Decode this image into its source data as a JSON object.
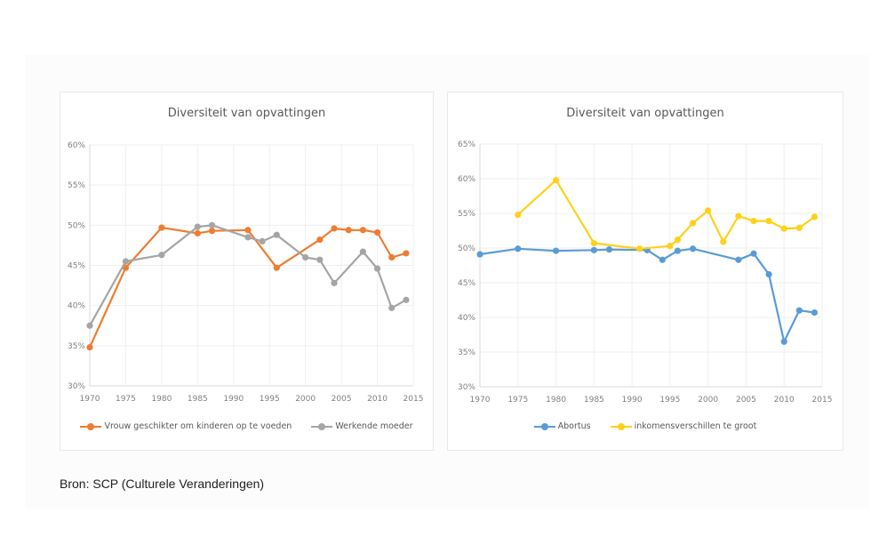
{
  "source": "Bron: SCP (Culturele Veranderingen)",
  "chart_data": [
    {
      "type": "line",
      "title": "Diversiteit van opvattingen",
      "xlabel": "",
      "ylabel": "",
      "xlim": [
        1970,
        2015
      ],
      "ylim": [
        30,
        60
      ],
      "xticks": [
        "1970",
        "1975",
        "1980",
        "1985",
        "1990",
        "1995",
        "2000",
        "2005",
        "2010",
        "2015"
      ],
      "yticks": [
        "30%",
        "35%",
        "40%",
        "45%",
        "50%",
        "55%",
        "60%"
      ],
      "grid": true,
      "legend": "bottom",
      "series": [
        {
          "name": "Vrouw geschikter om kinderen op te voeden",
          "color": "#ed7d31",
          "x": [
            1970,
            1975,
            1980,
            1985,
            1987,
            1992,
            1996,
            2002,
            2004,
            2006,
            2008,
            2010,
            2012,
            2014
          ],
          "values": [
            34.8,
            44.7,
            49.7,
            49.0,
            49.3,
            49.4,
            44.7,
            48.2,
            49.6,
            49.4,
            49.4,
            49.1,
            46.0,
            46.5
          ]
        },
        {
          "name": "Werkende moeder",
          "color": "#a5a5a5",
          "x": [
            1970,
            1975,
            1980,
            1985,
            1987,
            1992,
            1994,
            1996,
            2000,
            2002,
            2004,
            2008,
            2010,
            2012,
            2014
          ],
          "values": [
            37.5,
            45.5,
            46.3,
            49.8,
            50.0,
            48.5,
            48.0,
            48.8,
            46.0,
            45.7,
            42.8,
            46.7,
            44.6,
            39.7,
            40.7
          ]
        }
      ]
    },
    {
      "type": "line",
      "title": "Diversiteit van opvattingen",
      "xlabel": "",
      "ylabel": "",
      "xlim": [
        1970,
        2015
      ],
      "ylim": [
        30,
        65
      ],
      "xticks": [
        "1970",
        "1975",
        "1980",
        "1985",
        "1990",
        "1995",
        "2000",
        "2005",
        "2010",
        "2015"
      ],
      "yticks": [
        "30%",
        "35%",
        "40%",
        "45%",
        "50%",
        "55%",
        "60%",
        "65%"
      ],
      "grid": true,
      "legend": "bottom",
      "series": [
        {
          "name": "Abortus",
          "color": "#5b9bd5",
          "x": [
            1970,
            1975,
            1980,
            1985,
            1987,
            1992,
            1994,
            1996,
            1998,
            2004,
            2006,
            2008,
            2010,
            2012,
            2014
          ],
          "values": [
            49.1,
            49.9,
            49.6,
            49.7,
            49.8,
            49.7,
            48.3,
            49.6,
            49.9,
            48.3,
            49.2,
            46.2,
            36.5,
            41.0,
            40.7
          ]
        },
        {
          "name": "inkomensverschillen te groot",
          "color": "#ffd119",
          "x": [
            1975,
            1980,
            1985,
            1991,
            1995,
            1996,
            1998,
            2000,
            2002,
            2004,
            2006,
            2008,
            2010,
            2012,
            2014
          ],
          "values": [
            54.8,
            59.8,
            50.7,
            49.9,
            50.3,
            51.2,
            53.6,
            55.4,
            50.9,
            54.6,
            53.9,
            53.9,
            52.8,
            52.9,
            54.5
          ]
        }
      ]
    }
  ]
}
